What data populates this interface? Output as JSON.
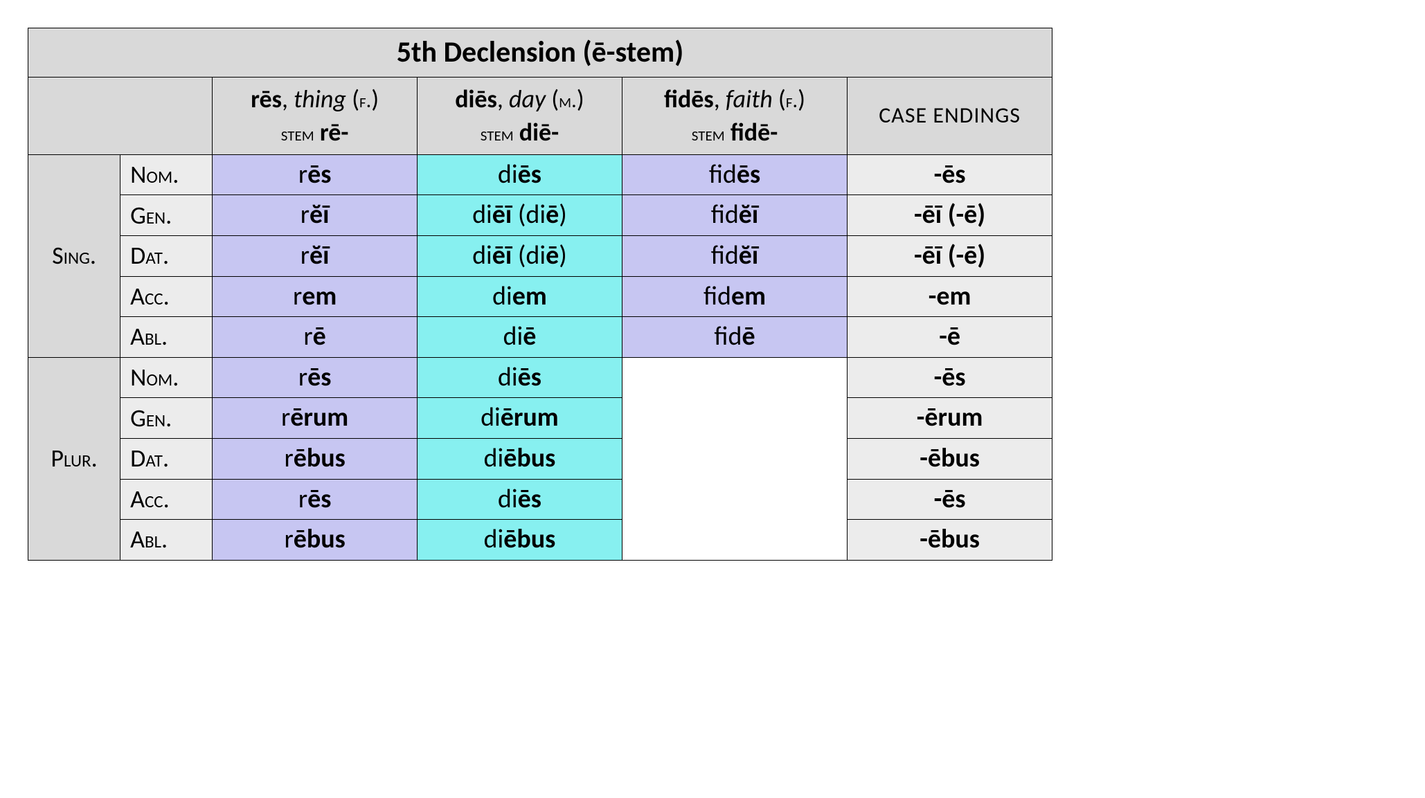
{
  "title": "5th Declension (ē-stem)",
  "colors": {
    "header_bg": "#d9d9d9",
    "label_bg": "#ececec",
    "feminine_bg": "#c7c6f2",
    "masculine_bg": "#87f0f0",
    "border": "#000000",
    "blank": "#ffffff"
  },
  "columns": [
    {
      "word": "rēs",
      "gloss": "thing",
      "gender": "f.",
      "stem": "rē",
      "bg": "feminine"
    },
    {
      "word": "diēs",
      "gloss": "day",
      "gender": "m.",
      "stem": "diē",
      "bg": "masculine"
    },
    {
      "word": "fidēs",
      "gloss": "faith",
      "gender": "f.",
      "stem": "fidē",
      "bg": "feminine"
    }
  ],
  "endings_header": "CASE ENDINGS",
  "stem_label": "stem",
  "numbers": [
    "Sing.",
    "Plur."
  ],
  "cases": [
    "Nom.",
    "Gen.",
    "Dat.",
    "Acc.",
    "Abl."
  ],
  "forms": {
    "sing": {
      "res": [
        "r<b>ēs</b>",
        "r<b>ĕī</b>",
        "r<b>ĕī</b>",
        "r<b>em</b>",
        "r<b>ē</b>"
      ],
      "dies": [
        "di<b>ēs</b>",
        "di<b>ēī</b> (di<b>ē</b>)",
        "di<b>ēī</b> (di<b>ē</b>)",
        "di<b>em</b>",
        "di<b>ē</b>"
      ],
      "fides": [
        "fid<b>ēs</b>",
        "fid<b>ĕī</b>",
        "fid<b>ĕī</b>",
        "fid<b>em</b>",
        "fid<b>ē</b>"
      ],
      "end": [
        "-ēs",
        "-ēī (-ē)",
        "-ēī (-ē)",
        "-em",
        "-ē"
      ]
    },
    "plur": {
      "res": [
        "r<b>ēs</b>",
        "r<b>ērum</b>",
        "r<b>ēbus</b>",
        "r<b>ēs</b>",
        "r<b>ēbus</b>"
      ],
      "dies": [
        "di<b>ēs</b>",
        "di<b>ērum</b>",
        "di<b>ēbus</b>",
        "di<b>ēs</b>",
        "di<b>ēbus</b>"
      ],
      "end": [
        "-ēs",
        "-ērum",
        "-ēbus",
        "-ēs",
        "-ēbus"
      ]
    }
  }
}
